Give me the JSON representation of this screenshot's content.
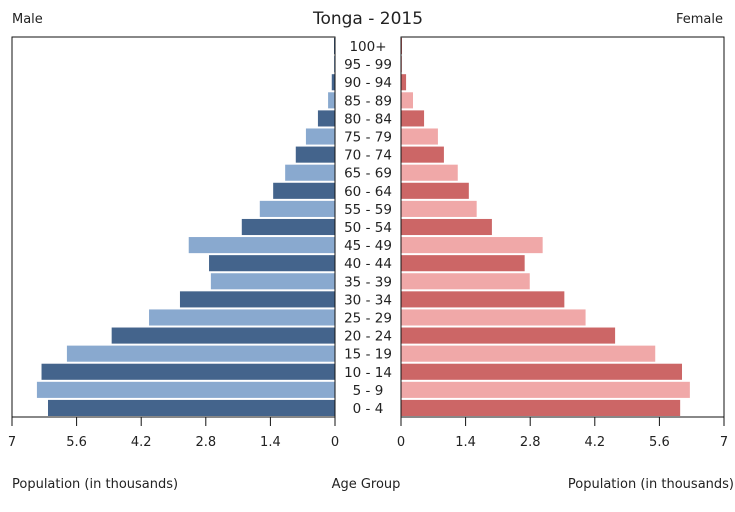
{
  "chart_data": {
    "type": "bar",
    "subtype": "population-pyramid",
    "title": "Tonga - 2015",
    "left_label": "Male",
    "right_label": "Female",
    "xlabel_left": "Population (in thousands)",
    "xlabel_center": "Age Group",
    "xlabel_right": "Population (in thousands)",
    "xlim": [
      0,
      7
    ],
    "tick_labels_left": [
      "7",
      "5.6",
      "4.2",
      "2.8",
      "1.4",
      "0"
    ],
    "tick_labels_right": [
      "0",
      "1.4",
      "2.8",
      "4.2",
      "5.6",
      "7"
    ],
    "ticks": [
      0,
      1.4,
      2.8,
      4.2,
      5.6,
      7
    ],
    "categories": [
      "0 - 4",
      "5 - 9",
      "10 - 14",
      "15 - 19",
      "20 - 24",
      "25 - 29",
      "30 - 34",
      "35 - 39",
      "40 - 44",
      "45 - 49",
      "50 - 54",
      "55 - 59",
      "60 - 64",
      "65 - 69",
      "70 - 74",
      "75 - 79",
      "80 - 84",
      "85 - 89",
      "90 - 94",
      "95 - 99",
      "100+"
    ],
    "series": [
      {
        "name": "Male",
        "colors": [
          "#44648c",
          "#89a9cf"
        ],
        "values": [
          6.22,
          6.46,
          6.36,
          5.81,
          4.84,
          4.03,
          3.36,
          2.69,
          2.73,
          3.17,
          2.02,
          1.63,
          1.34,
          1.08,
          0.85,
          0.63,
          0.37,
          0.15,
          0.07,
          0.02,
          0.005
        ]
      },
      {
        "name": "Female",
        "colors": [
          "#cc6666",
          "#f0a8a8"
        ],
        "values": [
          6.05,
          6.26,
          6.09,
          5.51,
          4.64,
          4.0,
          3.54,
          2.79,
          2.68,
          3.07,
          1.97,
          1.64,
          1.47,
          1.23,
          0.93,
          0.8,
          0.5,
          0.26,
          0.11,
          0.02,
          0.02
        ]
      }
    ],
    "grid": false
  }
}
